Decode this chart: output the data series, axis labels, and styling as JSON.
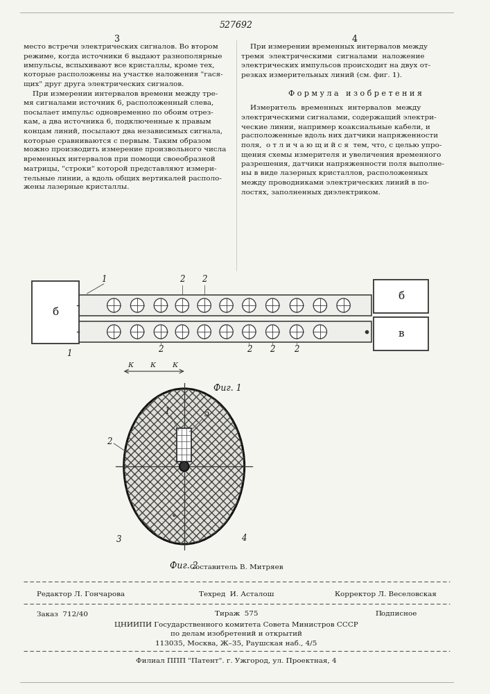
{
  "patent_number": "527692",
  "page_left": "3",
  "page_right": "4",
  "text_col1": [
    "место встречи электрических сигналов. Во втором",
    "режиме, когда источники 6 выдают разнополярные",
    "импульсы, вспыхивают все кристаллы, кроме тех,",
    "которые расположены на участке наложения \"гася-",
    "щих\" друг друга электрических сигналов.",
    "    При измерении интервалов времени между тре-",
    "мя сигналами источник 6, расположенный слева,",
    "посылает импульс одновременно по обоим отрез-",
    "кам, а два источника 6, подключенные к правым",
    "концам линий, посылают два независимых сигнала,",
    "которые сравниваются с первым. Таким образом",
    "можно производить измерение произвольного числа",
    "временных интервалов при помощи своеобразной",
    "матрицы, \"строки\" которой представляют измери-",
    "тельные линии, а вдоль общих вертикалей располо-",
    "жены лазерные кристаллы."
  ],
  "text_col2_top": [
    "    При измерении временных интервалов между",
    "тремя  электрическими  сигналами  наложение",
    "электрических импульсов происходит на двух от-",
    "резках измерительных линий (см. фиг. 1)."
  ],
  "formula_title": "Ф о р м у л а   и з о б р е т е н и я",
  "text_col2_bottom": [
    "    Измеритель  временных  интервалов  между",
    "электрическими сигналами, содержащий электри-",
    "ческие линии, например коаксиальные кабели, и",
    "расположенные вдоль них датчики напряженности",
    "поля,  о т л и ч а ю щ и й с я  тем, что, с целью упро-",
    "щения схемы измерителя и увеличения временного",
    "разрешения, датчики напряженности поля выполне-",
    "ны в виде лазерных кристаллов, расположенных",
    "между проводниками электрических линий в по-",
    "лостях, заполненных диэлектриком."
  ],
  "fig1_label": "Фиг. 1",
  "fig2_label": "Фиг. 2",
  "footer_editor": "Редактор Л. Гончарова",
  "footer_composer": "Составитель В. Митряев",
  "footer_techred": "Техред  И. Асталош",
  "footer_corrector": "Корректор Л. Веселовская",
  "footer_order": "Заказ  712/40",
  "footer_tirazh": "Тираж  575",
  "footer_podpisnoe": "Подписное",
  "footer_org1": "ЦНИИПИ Государственного комитета Совета Министров СССР",
  "footer_org2": "по делам изобретений и открытий",
  "footer_org3": "113035, Москва, Ж–35, Раушская наб., 4/5",
  "footer_filial": "Филиал ППП \"Патент\". г. Ужгород, ул. Проектная, 4",
  "bg_color": "#f5f5f0",
  "text_color": "#1a1a1a"
}
